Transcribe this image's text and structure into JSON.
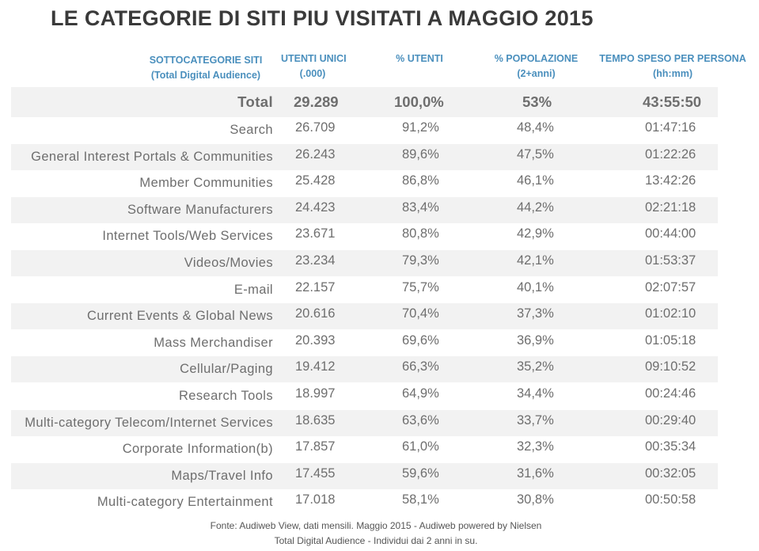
{
  "title": "LE CATEGORIE DI SITI PIU VISITATI A MAGGIO 2015",
  "header": {
    "category": "SOTTOCATEGORIE SITI",
    "category_sub": "(Total Digital Audience)",
    "users": "UTENTI UNICI",
    "users_sub": "(.000)",
    "pct_users": "% UTENTI",
    "pct_pop": "% POPOLAZIONE",
    "pct_pop_sub": "(2+anni)",
    "time": "TEMPO SPESO PER PERSONA",
    "time_sub": "(hh:mm)"
  },
  "accent_color": "#4a8fbd",
  "chart_data": {
    "type": "table",
    "title": "LE CATEGORIE DI SITI PIU VISITATI A MAGGIO 2015",
    "columns": [
      "SOTTOCATEGORIE SITI (Total Digital Audience)",
      "UTENTI UNICI (.000)",
      "% UTENTI",
      "% POPOLAZIONE (2+anni)",
      "TEMPO SPESO PER PERSONA (hh:mm)"
    ],
    "total": {
      "category": "Total",
      "users": "29.289",
      "pct_users": "100,0%",
      "pct_pop": "53%",
      "time": "43:55:50"
    },
    "rows": [
      {
        "category": "Search",
        "users": "26.709",
        "pct_users": "91,2%",
        "pct_pop": "48,4%",
        "time": "01:47:16"
      },
      {
        "category": "General Interest Portals & Communities",
        "users": "26.243",
        "pct_users": "89,6%",
        "pct_pop": "47,5%",
        "time": "01:22:26"
      },
      {
        "category": "Member Communities",
        "users": "25.428",
        "pct_users": "86,8%",
        "pct_pop": "46,1%",
        "time": "13:42:26"
      },
      {
        "category": "Software Manufacturers",
        "users": "24.423",
        "pct_users": "83,4%",
        "pct_pop": "44,2%",
        "time": "02:21:18"
      },
      {
        "category": "Internet Tools/Web Services",
        "users": "23.671",
        "pct_users": "80,8%",
        "pct_pop": "42,9%",
        "time": "00:44:00"
      },
      {
        "category": "Videos/Movies",
        "users": "23.234",
        "pct_users": "79,3%",
        "pct_pop": "42,1%",
        "time": "01:53:37"
      },
      {
        "category": "E-mail",
        "users": "22.157",
        "pct_users": "75,7%",
        "pct_pop": "40,1%",
        "time": "02:07:57"
      },
      {
        "category": "Current Events & Global News",
        "users": "20.616",
        "pct_users": "70,4%",
        "pct_pop": "37,3%",
        "time": "01:02:10"
      },
      {
        "category": "Mass Merchandiser",
        "users": "20.393",
        "pct_users": "69,6%",
        "pct_pop": "36,9%",
        "time": "01:05:18"
      },
      {
        "category": "Cellular/Paging",
        "users": "19.412",
        "pct_users": "66,3%",
        "pct_pop": "35,2%",
        "time": "09:10:52"
      },
      {
        "category": "Research Tools",
        "users": "18.997",
        "pct_users": "64,9%",
        "pct_pop": "34,4%",
        "time": "00:24:46"
      },
      {
        "category": "Multi-category Telecom/Internet Services",
        "users": "18.635",
        "pct_users": "63,6%",
        "pct_pop": "33,7%",
        "time": "00:29:40"
      },
      {
        "category": "Corporate Information(b)",
        "users": "17.857",
        "pct_users": "61,0%",
        "pct_pop": "32,3%",
        "time": "00:35:34"
      },
      {
        "category": "Maps/Travel Info",
        "users": "17.455",
        "pct_users": "59,6%",
        "pct_pop": "31,6%",
        "time": "00:32:05"
      },
      {
        "category": "Multi-category Entertainment",
        "users": "17.018",
        "pct_users": "58,1%",
        "pct_pop": "30,8%",
        "time": "00:50:58"
      }
    ]
  },
  "footer": {
    "line1": "Fonte: Audiweb View, dati mensili. Maggio 2015 - Audiweb powered by Nielsen",
    "line2": "Total Digital Audience - Individui  dai 2 anni in su."
  }
}
